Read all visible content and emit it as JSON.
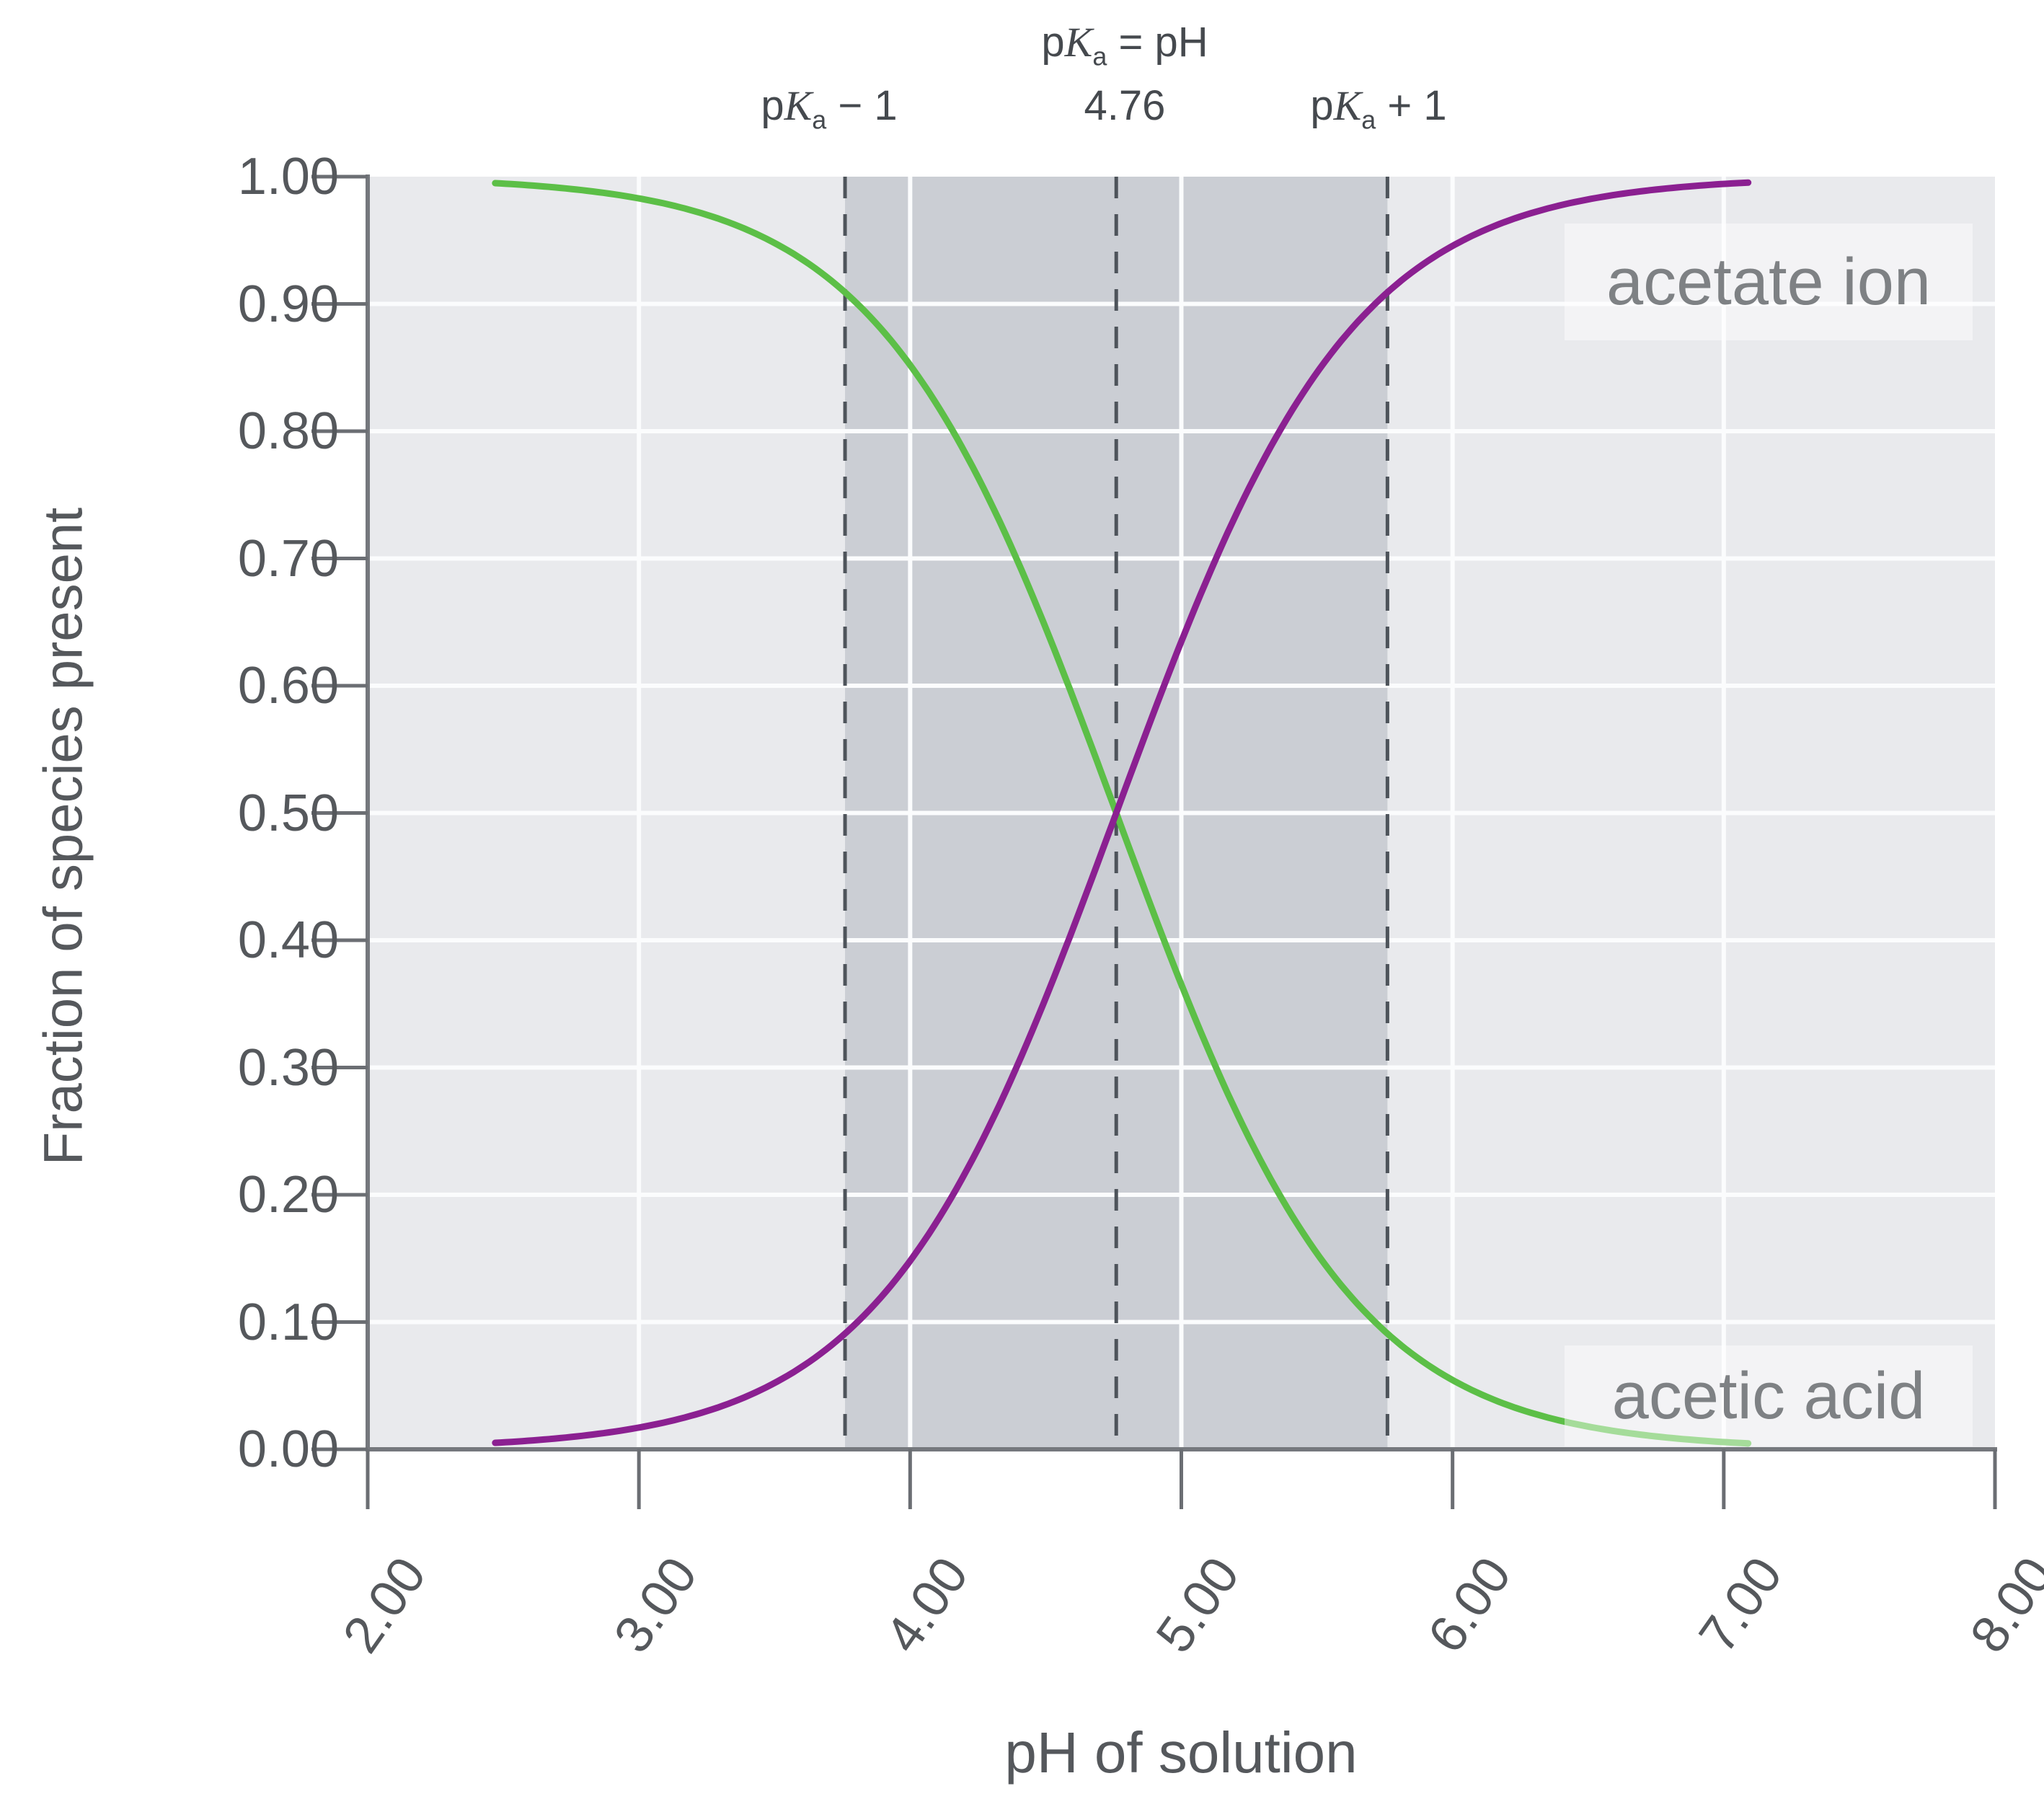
{
  "colors": {
    "acid_curve": "#5cbf47",
    "ion_curve": "#8b2091",
    "plot_bg": "#e9eaed",
    "band_bg": "#cbced4",
    "gridline": "#fbfcfd",
    "axis": "#75787d",
    "tick": "#6b6e73",
    "dashed": "#4e545b"
  },
  "labels": {
    "p": "p",
    "K": "K",
    "a_sub": "a",
    "equals_ph": " = pH",
    "pka_value": "4.76",
    "minus_one": " − 1",
    "plus_one": " + 1",
    "acetate_ion": "acetate ion",
    "acetic_acid": "acetic acid",
    "xlabel": "pH of solution",
    "ylabel": "Fraction of species present"
  },
  "chart_data": {
    "type": "line",
    "xlabel": "pH of solution",
    "ylabel": "Fraction of species present",
    "xlim": [
      2.0,
      8.0
    ],
    "ylim": [
      0.0,
      1.0
    ],
    "grid": true,
    "x_ticks": [
      "2.00",
      "3.00",
      "4.00",
      "5.00",
      "6.00",
      "7.00",
      "8.00"
    ],
    "x_tick_values": [
      2,
      3,
      4,
      5,
      6,
      7,
      8
    ],
    "y_ticks": [
      "0.00",
      "0.10",
      "0.20",
      "0.30",
      "0.40",
      "0.50",
      "0.60",
      "0.70",
      "0.80",
      "0.90",
      "1.00"
    ],
    "y_tick_values": [
      0,
      0.1,
      0.2,
      0.3,
      0.4,
      0.5,
      0.6,
      0.7,
      0.8,
      0.9,
      1.0
    ],
    "pKa": 4.76,
    "curve_ph_domain": [
      2.47,
      7.1
    ],
    "shaded_region": {
      "ph_from": 3.76,
      "ph_to": 5.76
    },
    "dashed_lines_ph": [
      3.76,
      4.76,
      5.76
    ],
    "series": [
      {
        "name": "acetic acid",
        "direction": "decreasing",
        "color": "#5cbf47",
        "x": [
          2.5,
          2.75,
          3.0,
          3.25,
          3.5,
          3.75,
          4.0,
          4.25,
          4.5,
          4.75,
          5.0,
          5.25,
          5.5,
          5.75,
          6.0,
          6.25,
          6.5,
          6.75,
          7.0
        ],
        "values": [
          0.995,
          0.99,
          0.983,
          0.97,
          0.948,
          0.911,
          0.852,
          0.764,
          0.645,
          0.506,
          0.365,
          0.244,
          0.154,
          0.093,
          0.054,
          0.031,
          0.018,
          0.01,
          0.006
        ]
      },
      {
        "name": "acetate ion",
        "direction": "increasing",
        "color": "#8b2091",
        "x": [
          2.5,
          2.75,
          3.0,
          3.25,
          3.5,
          3.75,
          4.0,
          4.25,
          4.5,
          4.75,
          5.0,
          5.25,
          5.5,
          5.75,
          6.0,
          6.25,
          6.5,
          6.75,
          7.0
        ],
        "values": [
          0.005,
          0.01,
          0.017,
          0.03,
          0.052,
          0.089,
          0.148,
          0.236,
          0.355,
          0.494,
          0.635,
          0.756,
          0.846,
          0.907,
          0.946,
          0.969,
          0.982,
          0.99,
          0.994
        ]
      }
    ],
    "annotations": {
      "above_left_dashed": "pKa − 1",
      "above_center_dashed_line1": "pKa = pH",
      "above_center_dashed_line2": "4.76",
      "above_right_dashed": "pKa + 1",
      "curve_label_upper_right": "acetate ion",
      "curve_label_lower_right": "acetic acid"
    }
  }
}
